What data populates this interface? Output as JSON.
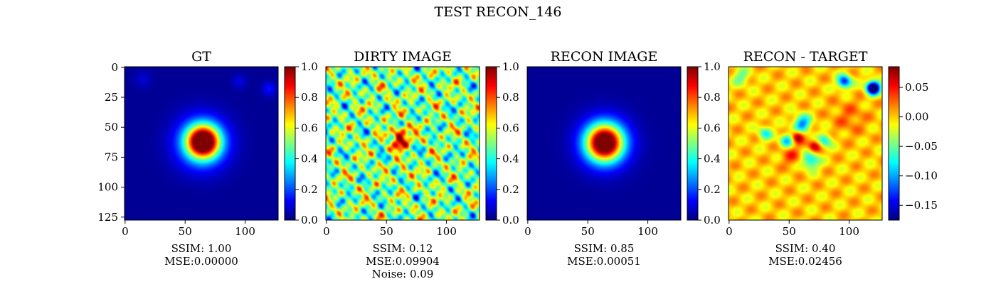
{
  "figure": {
    "title": "TEST RECON_146"
  },
  "colors": {
    "colormap": "jet",
    "frame": "#000000"
  },
  "chart_data": [
    {
      "type": "heatmap",
      "title": "GT",
      "image_size": [
        128,
        128
      ],
      "x_ticks": [
        0,
        50,
        100
      ],
      "y_ticks": [
        0,
        25,
        50,
        75,
        100,
        125
      ],
      "colorbar": {
        "range": [
          0.0,
          1.0
        ],
        "ticks": [
          "0.0",
          "0.2",
          "0.4",
          "0.6",
          "0.8",
          "1.0"
        ]
      },
      "caption": [
        "SSIM: 1.00",
        "MSE:0.00000"
      ],
      "features": [
        {
          "type": "gaussian",
          "x": 65,
          "y": 62,
          "sigma": 9,
          "amplitude": 1.0
        },
        {
          "type": "gaussian",
          "x": 64,
          "y": 63,
          "sigma": 15,
          "amplitude": 0.35
        },
        {
          "type": "gaussian",
          "x": 120,
          "y": 18,
          "sigma": 4,
          "amplitude": 0.12
        },
        {
          "type": "gaussian",
          "x": 95,
          "y": 12,
          "sigma": 4,
          "amplitude": 0.08
        },
        {
          "type": "gaussian",
          "x": 15,
          "y": 10,
          "sigma": 5,
          "amplitude": 0.06
        }
      ]
    },
    {
      "type": "heatmap",
      "title": "DIRTY IMAGE",
      "image_size": [
        128,
        128
      ],
      "x_ticks": [
        0,
        50,
        100
      ],
      "y_ticks": [],
      "colorbar": {
        "range": [
          0.0,
          1.0
        ],
        "ticks": [
          "0.0",
          "0.2",
          "0.4",
          "0.6",
          "0.8",
          "1.0"
        ]
      },
      "caption": [
        "SSIM: 0.12",
        "MSE:0.09904",
        "Noise: 0.09"
      ],
      "features": [
        {
          "type": "gaussian",
          "x": 63,
          "y": 57,
          "sigma": 5,
          "amplitude": 0.45
        },
        {
          "type": "gaussian",
          "x": 59,
          "y": 65,
          "sigma": 4,
          "amplitude": 0.3
        },
        {
          "type": "gaussian",
          "x": 63,
          "y": 86,
          "sigma": 3,
          "amplitude": 0.2
        }
      ]
    },
    {
      "type": "heatmap",
      "title": "RECON IMAGE",
      "image_size": [
        128,
        128
      ],
      "x_ticks": [
        0,
        50,
        100
      ],
      "y_ticks": [],
      "colorbar": {
        "range": [
          0.0,
          1.0
        ],
        "ticks": [
          "0.0",
          "0.2",
          "0.4",
          "0.6",
          "0.8",
          "1.0"
        ]
      },
      "caption": [
        "SSIM: 0.85",
        "MSE:0.00051"
      ],
      "features": [
        {
          "type": "gaussian",
          "x": 64,
          "y": 63,
          "sigma": 10,
          "amplitude": 0.95
        },
        {
          "type": "gaussian",
          "x": 64,
          "y": 63,
          "sigma": 15,
          "amplitude": 0.3
        }
      ]
    },
    {
      "type": "heatmap",
      "title": "RECON - TARGET",
      "image_size": [
        128,
        128
      ],
      "x_ticks": [
        0,
        50,
        100
      ],
      "y_ticks": [],
      "colorbar": {
        "range": [
          -0.175,
          0.085
        ],
        "ticks": [
          "−0.15",
          "−0.10",
          "−0.05",
          "0.00",
          "0.05"
        ]
      },
      "caption": [
        "SSIM: 0.40",
        "MSE:0.02456"
      ],
      "features": [
        {
          "type": "gaussian",
          "x": 57,
          "y": 58,
          "sigma": 3.5,
          "amplitude": 0.085
        },
        {
          "type": "gaussian",
          "x": 71,
          "y": 66,
          "sigma": 3.5,
          "amplitude": 0.075
        },
        {
          "type": "gaussian",
          "x": 52,
          "y": 74,
          "sigma": 6,
          "amplitude": 0.035
        },
        {
          "type": "gaussian",
          "x": 100,
          "y": 42,
          "sigma": 10,
          "amplitude": 0.025
        },
        {
          "type": "gaussian",
          "x": 120,
          "y": 17,
          "sigma": 4,
          "amplitude": -0.23
        },
        {
          "type": "gaussian",
          "x": 96,
          "y": 12,
          "sigma": 4,
          "amplitude": -0.14
        },
        {
          "type": "gaussian",
          "x": 61,
          "y": 47,
          "sigma": 5,
          "amplitude": -0.11
        },
        {
          "type": "gaussian",
          "x": 48,
          "y": 61,
          "sigma": 4,
          "amplitude": -0.09
        },
        {
          "type": "gaussian",
          "x": 80,
          "y": 61,
          "sigma": 4,
          "amplitude": -0.08
        },
        {
          "type": "gaussian",
          "x": 68,
          "y": 78,
          "sigma": 5,
          "amplitude": -0.09
        },
        {
          "type": "gaussian",
          "x": 30,
          "y": 55,
          "sigma": 4,
          "amplitude": -0.07
        },
        {
          "type": "gaussian",
          "x": 10,
          "y": 8,
          "sigma": 5,
          "amplitude": -0.05
        }
      ]
    }
  ]
}
